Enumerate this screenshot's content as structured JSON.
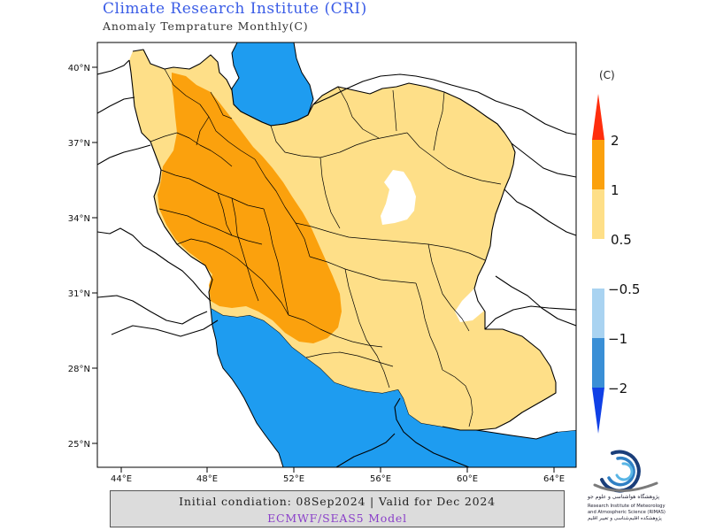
{
  "header": {
    "title": "Climate Research Institute (CRI)",
    "subtitle": "Anomaly Temprature Monthly(C)"
  },
  "map": {
    "lat_ticks": [
      "40°N",
      "37°N",
      "34°N",
      "31°N",
      "28°N",
      "25°N"
    ],
    "lon_ticks": [
      "44°E",
      "48°E",
      "52°E",
      "56°E",
      "60°E",
      "64°E"
    ],
    "colors": {
      "sea": "#1e9cf0",
      "land": "#ffffff",
      "anomaly_0_5_to_1": "#fedf88",
      "anomaly_1_to_2": "#fba10d",
      "border": "#000000"
    }
  },
  "legend": {
    "unit": "(C)",
    "warm_labels": [
      "2",
      "1",
      "0.5"
    ],
    "cool_labels": [
      "−0.5",
      "−1",
      "−2"
    ],
    "colors": {
      "above_2": "#ff2e0d",
      "range_1_2": "#fba10d",
      "range_05_1": "#fedf88",
      "range_m05_m1": "#a9d3f1",
      "range_m1_m2": "#3a8fd6",
      "below_m2": "#1040e6"
    }
  },
  "footer": {
    "line1": "Initial condiation: 08Sep2024 | Valid for Dec 2024",
    "line2": "ECMWF/SEAS5 Model"
  },
  "logo": {
    "persian_name": "پژوهشگاه هواشناسی و علوم جو",
    "english_line1": "Research Institute of Meteorology",
    "english_line2": "and Atmospheric Science (RIMAS)",
    "persian_sub": "پژوهشکده اقلیم‌شناسی و تغییر اقلیم"
  }
}
